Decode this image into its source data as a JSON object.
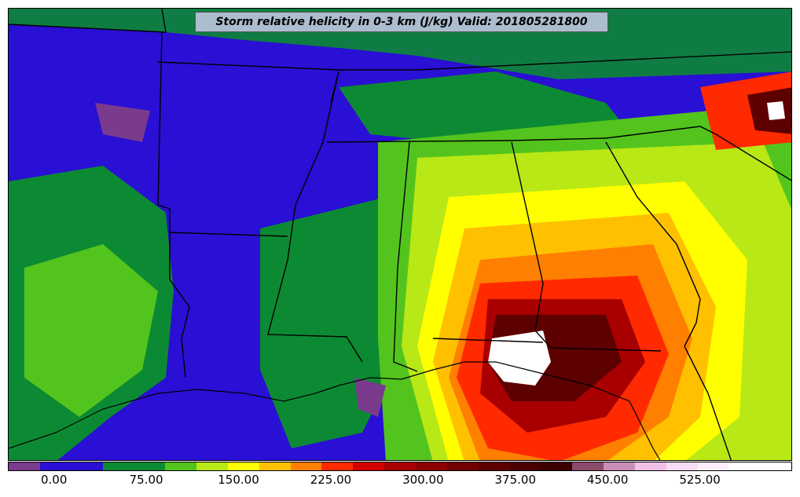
{
  "map": {
    "title": "Storm relative helicity in 0-3 km (J/kg) Valid: 201805281800"
  },
  "colorbar": {
    "colors": [
      "#7a3b8c",
      "#2a0fd4",
      "#2a0fd4",
      "#0c8a33",
      "#0c8a33",
      "#53c41d",
      "#b9e817",
      "#ffff00",
      "#ffc000",
      "#ff7f00",
      "#ff2a00",
      "#d40000",
      "#a80000",
      "#8c0000",
      "#720000",
      "#5c0000",
      "#4a0000",
      "#3d0000",
      "#8a4a6a",
      "#c98fb8",
      "#f0c0e8",
      "#f7ddf3",
      "#fbeefa",
      "#ffffff",
      "#ffffff"
    ],
    "tick_labels": [
      "0.00",
      "75.00",
      "150.00",
      "225.00",
      "300.00",
      "375.00",
      "450.00",
      "525.00"
    ],
    "tick_values": [
      0,
      75,
      150,
      225,
      300,
      375,
      450,
      525
    ],
    "range": [
      -37.5,
      600
    ]
  }
}
